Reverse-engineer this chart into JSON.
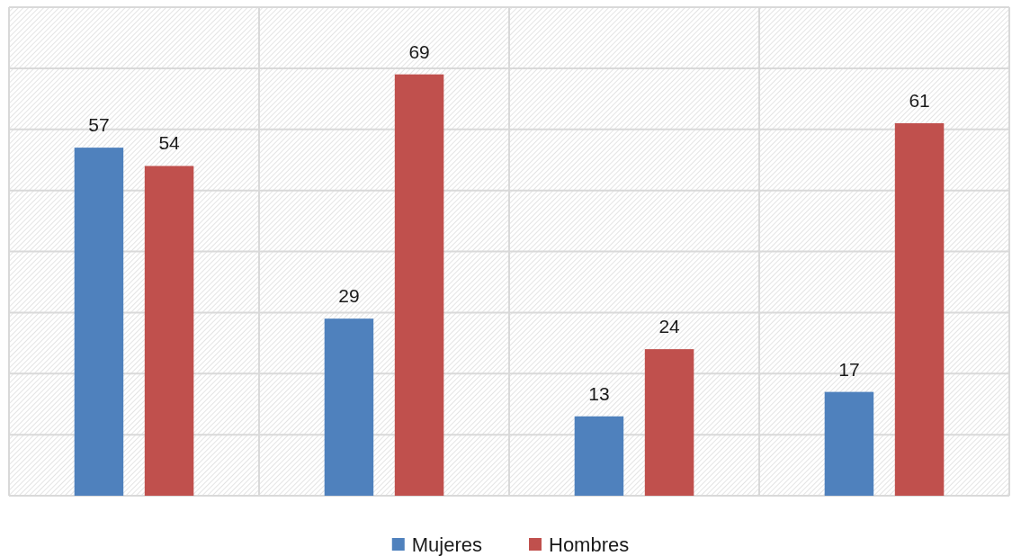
{
  "chart_data": {
    "type": "bar",
    "categories": [
      null,
      null,
      null,
      null
    ],
    "series": [
      {
        "name": "Mujeres",
        "color": "#4f81bd",
        "values": [
          57,
          29,
          13,
          17
        ]
      },
      {
        "name": "Hombres",
        "color": "#c0504d",
        "values": [
          54,
          69,
          24,
          61
        ]
      }
    ],
    "ylim": [
      0,
      80
    ],
    "yticks": [
      {
        "value": 0,
        "label": null
      },
      {
        "value": 10,
        "label": null
      },
      {
        "value": 20,
        "label": null
      },
      {
        "value": 30,
        "label": null
      },
      {
        "value": 40,
        "label": null
      },
      {
        "value": 50,
        "label": null
      },
      {
        "value": 60,
        "label": null
      },
      {
        "value": 70,
        "label": null
      },
      {
        "value": 80,
        "label": null
      }
    ],
    "grid": true,
    "data_labels": true,
    "legend": "bottom"
  }
}
